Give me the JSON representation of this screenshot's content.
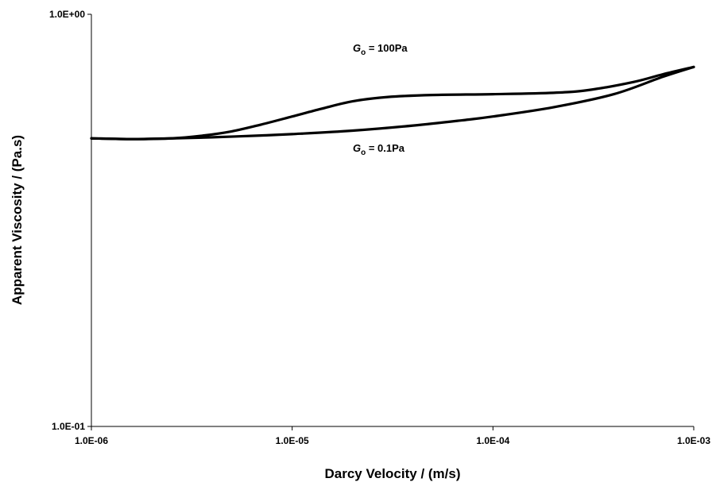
{
  "chart_data": {
    "type": "line",
    "xlabel": "Darcy Velocity / (m/s)",
    "ylabel": "Apparent Viscosity / (Pa.s)",
    "x_scale": "log",
    "y_scale": "log",
    "xlim": [
      1e-06,
      0.001
    ],
    "ylim": [
      0.1,
      1.0
    ],
    "x_ticks": [
      "1.0E-06",
      "1.0E-05",
      "1.0E-04",
      "1.0E-03"
    ],
    "y_ticks": [
      "1.0E-01",
      "1.0E+00"
    ],
    "grid": false,
    "series": [
      {
        "name_parts": {
          "symbol": "G",
          "subscript": "o",
          "text": " = 100Pa"
        },
        "x": [
          1e-06,
          1.6e-06,
          2.5e-06,
          3.5e-06,
          5e-06,
          7e-06,
          1e-05,
          1.4e-05,
          2e-05,
          3e-05,
          5e-05,
          0.0001,
          0.0002,
          0.0003,
          0.0005,
          0.0007,
          0.001
        ],
        "y": [
          0.5,
          0.498,
          0.5,
          0.507,
          0.52,
          0.54,
          0.565,
          0.59,
          0.615,
          0.63,
          0.637,
          0.64,
          0.645,
          0.655,
          0.685,
          0.715,
          0.745
        ]
      },
      {
        "name_parts": {
          "symbol": "G",
          "subscript": "o",
          "text": " = 0.1Pa"
        },
        "x": [
          1e-06,
          1.6e-06,
          2.5e-06,
          4e-06,
          7e-06,
          1e-05,
          2e-05,
          4e-05,
          7e-05,
          0.0001,
          0.0002,
          0.0004,
          0.0007,
          0.001
        ],
        "y": [
          0.5,
          0.498,
          0.5,
          0.503,
          0.508,
          0.512,
          0.522,
          0.537,
          0.553,
          0.565,
          0.595,
          0.64,
          0.705,
          0.745
        ]
      }
    ]
  }
}
